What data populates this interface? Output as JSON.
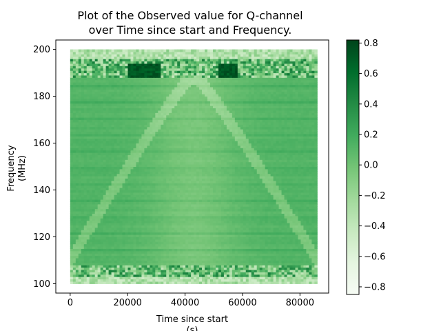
{
  "chart_data": {
    "type": "heatmap",
    "title_lines": [
      "Plot of the Observed value for Q-channel",
      "over Time since start and Frequency."
    ],
    "xlabel": "Time since start",
    "xlabel_unit": "(s)",
    "ylabel": "Frequency",
    "ylabel_unit": "(MHz)",
    "xlim": [
      -5000,
      90000
    ],
    "ylim": [
      96,
      204
    ],
    "data_extent": {
      "x": [
        0,
        86000
      ],
      "y": [
        100,
        200
      ]
    },
    "x_ticks": [
      0,
      20000,
      40000,
      60000,
      80000
    ],
    "y_ticks": [
      100,
      120,
      140,
      160,
      180,
      200
    ],
    "colormap": "Greens",
    "colorbar": {
      "range": [
        -0.85,
        0.82
      ],
      "ticks": [
        0.8,
        0.6,
        0.4,
        0.2,
        0.0,
        -0.2,
        -0.4,
        -0.6,
        -0.8
      ],
      "tick_labels": [
        "0.8",
        "0.6",
        "0.4",
        "0.2",
        "0.0",
        "−0.2",
        "−0.4",
        "−0.6",
        "−0.8"
      ]
    },
    "color_stops": [
      "#f7fcf5",
      "#e5f5e0",
      "#c7e9c0",
      "#a1d99b",
      "#74c476",
      "#41ab5d",
      "#238b45",
      "#006d2c",
      "#00441b"
    ],
    "background_value": 0.12
  }
}
